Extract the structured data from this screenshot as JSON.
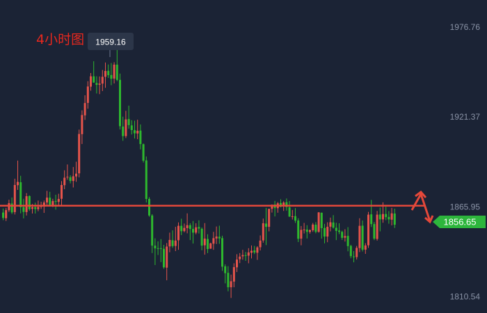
{
  "chart_data": {
    "type": "candlestick",
    "title": "4小时图",
    "timeframe": "4h",
    "y_ticks": [
      {
        "value": 1976.76,
        "label": "1976.76"
      },
      {
        "value": 1921.37,
        "label": "1921.37"
      },
      {
        "value": 1865.95,
        "label": "1865.95"
      },
      {
        "value": 1810.54,
        "label": "1810.54"
      }
    ],
    "ylim": [
      1800.4,
      1993.6
    ],
    "grid": false,
    "peak_label": {
      "value": 1959.16,
      "label": "1959.16"
    },
    "current_price": {
      "value": 1856.65,
      "label": "1856.65"
    },
    "support_resistance_line": {
      "value": 1866.6
    },
    "colors": {
      "background": "#1b2335",
      "up": "#e5544b",
      "down": "#2eb82e",
      "line": "#e5483a",
      "price_badge": "#2db53c",
      "peak_badge": "#2c3649"
    },
    "candles_ohlc": [
      [
        1862.4,
        1864.9,
        1857.7,
        1859.1
      ],
      [
        1858.9,
        1865.3,
        1857.2,
        1863.9
      ],
      [
        1863.8,
        1870.3,
        1862.7,
        1868.2
      ],
      [
        1868.0,
        1871.7,
        1861.5,
        1862.5
      ],
      [
        1862.7,
        1883.3,
        1861.2,
        1879.4
      ],
      [
        1879.3,
        1894.5,
        1876.4,
        1881.3
      ],
      [
        1881.1,
        1885.1,
        1861.9,
        1865.7
      ],
      [
        1865.8,
        1870.9,
        1858.8,
        1862.8
      ],
      [
        1862.7,
        1874.4,
        1860.6,
        1872.5
      ],
      [
        1872.6,
        1873.0,
        1863.5,
        1864.5
      ],
      [
        1864.7,
        1867.7,
        1861.8,
        1865.7
      ],
      [
        1865.7,
        1868.5,
        1861.8,
        1864.6
      ],
      [
        1864.5,
        1869.8,
        1863.2,
        1865.8
      ],
      [
        1865.9,
        1869.1,
        1864.6,
        1866.9
      ],
      [
        1866.8,
        1869.8,
        1862.2,
        1868.6
      ],
      [
        1868.6,
        1875.8,
        1866.7,
        1871.6
      ],
      [
        1871.6,
        1875.2,
        1866.1,
        1867.2
      ],
      [
        1867.1,
        1870.9,
        1865.8,
        1869.5
      ],
      [
        1869.5,
        1873.4,
        1864.2,
        1869.1
      ],
      [
        1869.0,
        1874.0,
        1867.1,
        1870.8
      ],
      [
        1870.9,
        1881.8,
        1867.0,
        1879.4
      ],
      [
        1879.3,
        1888.5,
        1876.8,
        1883.9
      ],
      [
        1884.1,
        1892.1,
        1882.7,
        1884.5
      ],
      [
        1884.2,
        1885.4,
        1880.4,
        1881.9
      ],
      [
        1881.9,
        1890.5,
        1877.9,
        1884.8
      ],
      [
        1884.7,
        1893.8,
        1881.4,
        1886.4
      ],
      [
        1886.6,
        1913.6,
        1884.1,
        1910.9
      ],
      [
        1910.8,
        1925.5,
        1904.7,
        1922.6
      ],
      [
        1922.4,
        1934.8,
        1919.6,
        1930.0
      ],
      [
        1930.1,
        1943.5,
        1926.5,
        1940.2
      ],
      [
        1940.1,
        1948.5,
        1937.6,
        1946.5
      ],
      [
        1946.5,
        1955.8,
        1942.6,
        1942.6
      ],
      [
        1942.4,
        1946.5,
        1935.9,
        1941.2
      ],
      [
        1941.3,
        1946.4,
        1935.5,
        1942.0
      ],
      [
        1942.0,
        1950.4,
        1937.4,
        1946.2
      ],
      [
        1946.2,
        1955.0,
        1939.4,
        1949.8
      ],
      [
        1949.9,
        1953.8,
        1945.5,
        1947.2
      ],
      [
        1947.3,
        1954.7,
        1941.0,
        1945.0
      ],
      [
        1945.1,
        1955.2,
        1942.1,
        1953.7
      ],
      [
        1953.7,
        1963.8,
        1943.5,
        1944.3
      ],
      [
        1944.3,
        1948.2,
        1913.7,
        1915.7
      ],
      [
        1915.5,
        1921.6,
        1906.7,
        1909.6
      ],
      [
        1909.6,
        1925.2,
        1908.4,
        1919.9
      ],
      [
        1920.1,
        1928.4,
        1914.2,
        1916.4
      ],
      [
        1916.2,
        1919.4,
        1910.6,
        1913.3
      ],
      [
        1913.2,
        1919.1,
        1908.1,
        1911.3
      ],
      [
        1911.2,
        1919.7,
        1907.7,
        1912.9
      ],
      [
        1913.0,
        1916.8,
        1901.4,
        1904.7
      ],
      [
        1904.6,
        1905.0,
        1893.3,
        1894.4
      ],
      [
        1894.6,
        1897.0,
        1868.6,
        1870.8
      ],
      [
        1870.8,
        1871.9,
        1859.8,
        1860.6
      ],
      [
        1860.6,
        1861.4,
        1837.4,
        1842.0
      ],
      [
        1842.0,
        1846.5,
        1830.0,
        1840.3
      ],
      [
        1840.4,
        1844.6,
        1836.2,
        1840.3
      ],
      [
        1840.4,
        1846.0,
        1831.8,
        1840.0
      ],
      [
        1840.0,
        1842.5,
        1827.7,
        1828.6
      ],
      [
        1828.4,
        1843.6,
        1820.6,
        1841.4
      ],
      [
        1841.5,
        1850.0,
        1837.9,
        1845.5
      ],
      [
        1845.3,
        1851.4,
        1840.6,
        1841.7
      ],
      [
        1841.8,
        1853.6,
        1838.6,
        1845.1
      ],
      [
        1845.3,
        1856.3,
        1839.4,
        1854.2
      ],
      [
        1854.2,
        1858.6,
        1848.5,
        1850.9
      ],
      [
        1851.0,
        1855.6,
        1850.2,
        1852.9
      ],
      [
        1852.8,
        1861.9,
        1849.6,
        1854.6
      ],
      [
        1854.6,
        1855.8,
        1845.4,
        1852.3
      ],
      [
        1852.3,
        1857.2,
        1843.3,
        1850.0
      ],
      [
        1850.0,
        1855.8,
        1849.0,
        1853.3
      ],
      [
        1853.5,
        1857.6,
        1849.5,
        1852.5
      ],
      [
        1852.4,
        1853.2,
        1839.1,
        1842.0
      ],
      [
        1842.2,
        1855.9,
        1836.4,
        1846.3
      ],
      [
        1846.1,
        1849.0,
        1837.4,
        1839.9
      ],
      [
        1840.1,
        1843.8,
        1840.0,
        1843.4
      ],
      [
        1843.2,
        1850.5,
        1839.4,
        1846.6
      ],
      [
        1846.4,
        1853.8,
        1843.0,
        1847.6
      ],
      [
        1847.5,
        1854.3,
        1843.1,
        1846.4
      ],
      [
        1846.6,
        1848.1,
        1826.4,
        1829.0
      ],
      [
        1829.2,
        1830.4,
        1818.7,
        1825.0
      ],
      [
        1825.2,
        1829.3,
        1813.8,
        1816.3
      ],
      [
        1816.3,
        1824.1,
        1809.7,
        1820.0
      ],
      [
        1819.8,
        1831.1,
        1816.3,
        1828.7
      ],
      [
        1828.6,
        1836.7,
        1825.7,
        1833.4
      ],
      [
        1833.6,
        1837.4,
        1831.2,
        1835.2
      ],
      [
        1835.4,
        1839.4,
        1833.3,
        1836.2
      ],
      [
        1836.1,
        1838.1,
        1832.6,
        1835.9
      ],
      [
        1835.8,
        1840.4,
        1831.1,
        1837.8
      ],
      [
        1837.6,
        1842.1,
        1834.1,
        1838.8
      ],
      [
        1839.0,
        1841.8,
        1836.8,
        1837.8
      ],
      [
        1837.6,
        1841.6,
        1833.2,
        1840.9
      ],
      [
        1841.0,
        1848.3,
        1839.0,
        1845.1
      ],
      [
        1845.2,
        1858.7,
        1843.8,
        1855.8
      ],
      [
        1855.6,
        1865.3,
        1842.3,
        1853.6
      ],
      [
        1853.6,
        1864.8,
        1850.8,
        1864.7
      ],
      [
        1864.7,
        1867.3,
        1862.4,
        1867.3
      ],
      [
        1867.4,
        1869.6,
        1860.0,
        1865.2
      ],
      [
        1865.1,
        1868.9,
        1862.3,
        1868.1
      ],
      [
        1868.3,
        1870.6,
        1865.6,
        1866.0
      ],
      [
        1866.1,
        1869.4,
        1863.4,
        1868.6
      ],
      [
        1868.8,
        1871.1,
        1863.6,
        1865.8
      ],
      [
        1865.6,
        1869.5,
        1859.7,
        1859.9
      ],
      [
        1860.1,
        1864.0,
        1858.1,
        1860.1
      ],
      [
        1860.2,
        1865.2,
        1856.0,
        1857.4
      ],
      [
        1857.5,
        1858.9,
        1844.2,
        1846.2
      ],
      [
        1846.3,
        1854.1,
        1842.2,
        1851.7
      ],
      [
        1851.6,
        1856.0,
        1849.5,
        1851.9
      ],
      [
        1851.9,
        1854.6,
        1846.4,
        1850.5
      ],
      [
        1850.5,
        1852.1,
        1849.4,
        1851.5
      ],
      [
        1851.5,
        1856.0,
        1850.5,
        1855.0
      ],
      [
        1854.9,
        1856.5,
        1849.6,
        1850.5
      ],
      [
        1850.5,
        1862.7,
        1850.0,
        1862.5
      ],
      [
        1862.3,
        1862.4,
        1846.3,
        1852.8
      ],
      [
        1852.9,
        1855.4,
        1843.4,
        1847.6
      ],
      [
        1847.6,
        1856.4,
        1844.1,
        1853.6
      ],
      [
        1853.7,
        1859.3,
        1850.8,
        1856.4
      ],
      [
        1856.3,
        1860.8,
        1852.5,
        1853.1
      ],
      [
        1853.0,
        1856.1,
        1845.4,
        1851.1
      ],
      [
        1851.3,
        1855.8,
        1849.1,
        1850.5
      ],
      [
        1850.5,
        1851.2,
        1845.5,
        1846.8
      ],
      [
        1846.9,
        1852.1,
        1844.5,
        1847.9
      ],
      [
        1848.0,
        1853.4,
        1838.5,
        1841.7
      ],
      [
        1841.8,
        1842.5,
        1834.2,
        1835.5
      ],
      [
        1835.3,
        1838.6,
        1831.7,
        1834.9
      ],
      [
        1834.9,
        1841.8,
        1833.4,
        1840.6
      ],
      [
        1840.5,
        1858.9,
        1838.0,
        1854.2
      ],
      [
        1854.3,
        1857.5,
        1838.4,
        1839.5
      ],
      [
        1839.5,
        1843.5,
        1836.9,
        1842.1
      ],
      [
        1842.2,
        1862.8,
        1840.6,
        1861.1
      ],
      [
        1861.3,
        1870.2,
        1853.5,
        1855.3
      ],
      [
        1855.3,
        1856.6,
        1845.4,
        1846.3
      ],
      [
        1846.1,
        1863.4,
        1845.1,
        1861.1
      ],
      [
        1861.2,
        1865.5,
        1850.8,
        1858.2
      ],
      [
        1858.2,
        1868.7,
        1856.1,
        1861.5
      ],
      [
        1861.5,
        1866.0,
        1857.7,
        1859.6
      ],
      [
        1859.7,
        1863.3,
        1855.5,
        1858.2
      ],
      [
        1858.0,
        1865.3,
        1854.5,
        1861.9
      ],
      [
        1861.8,
        1864.8,
        1852.9,
        1854.9
      ]
    ]
  }
}
